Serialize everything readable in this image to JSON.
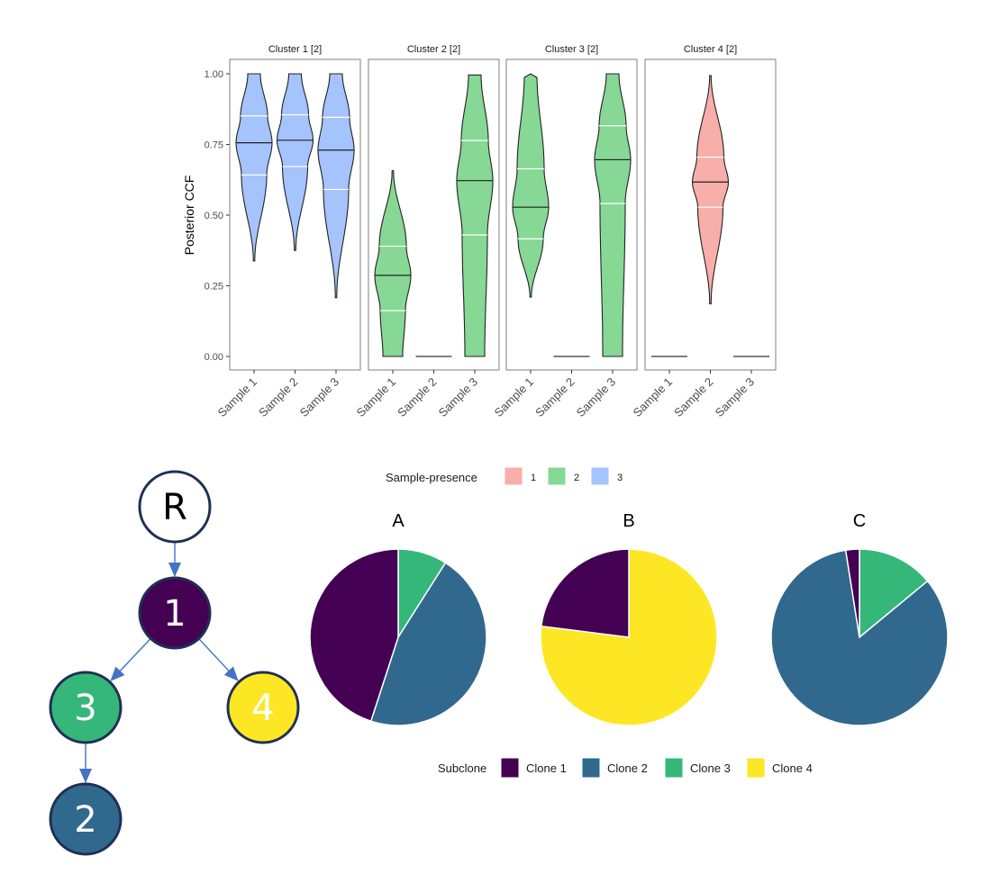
{
  "chart_data": [
    {
      "type": "violin",
      "ylabel": "Posterior CCF",
      "ylim": [
        0,
        1
      ],
      "yticks": [
        "0.00",
        "0.25",
        "0.50",
        "0.75",
        "1.00"
      ],
      "grid": false,
      "categories": [
        "Sample 1",
        "Sample 2",
        "Sample 3"
      ],
      "panels": [
        {
          "title": "Cluster 1 [2]",
          "presence": "3",
          "violins": [
            {
              "sample": "Sample 1",
              "min": 0.338,
              "q1": 0.642,
              "median": 0.756,
              "q3": 0.851,
              "max": 1.0
            },
            {
              "sample": "Sample 2",
              "min": 0.375,
              "q1": 0.672,
              "median": 0.765,
              "q3": 0.855,
              "max": 1.0
            },
            {
              "sample": "Sample 3",
              "min": 0.208,
              "q1": 0.591,
              "median": 0.73,
              "q3": 0.846,
              "max": 1.0
            }
          ]
        },
        {
          "title": "Cluster 2 [2]",
          "presence": "2",
          "violins": [
            {
              "sample": "Sample 1",
              "min": 0.0,
              "q1": 0.162,
              "median": 0.287,
              "q3": 0.39,
              "max": 0.657
            },
            {
              "sample": "Sample 2",
              "min": 0.0,
              "q1": 0.0,
              "median": 0.0,
              "q3": 0.0,
              "max": 0.0
            },
            {
              "sample": "Sample 3",
              "min": 0.0,
              "q1": 0.43,
              "median": 0.622,
              "q3": 0.764,
              "max": 0.996
            }
          ]
        },
        {
          "title": "Cluster 3 [2]",
          "presence": "2",
          "violins": [
            {
              "sample": "Sample 1",
              "min": 0.21,
              "q1": 0.416,
              "median": 0.528,
              "q3": 0.664,
              "max": 1.0
            },
            {
              "sample": "Sample 2",
              "min": 0.0,
              "q1": 0.0,
              "median": 0.0,
              "q3": 0.0,
              "max": 0.0
            },
            {
              "sample": "Sample 3",
              "min": 0.0,
              "q1": 0.541,
              "median": 0.696,
              "q3": 0.816,
              "max": 1.0
            }
          ]
        },
        {
          "title": "Cluster 4 [2]",
          "presence": "1",
          "violins": [
            {
              "sample": "Sample 1",
              "min": 0.0,
              "q1": 0.0,
              "median": 0.0,
              "q3": 0.0,
              "max": 0.0
            },
            {
              "sample": "Sample 2",
              "min": 0.186,
              "q1": 0.528,
              "median": 0.617,
              "q3": 0.705,
              "max": 0.994
            },
            {
              "sample": "Sample 3",
              "min": 0.0,
              "q1": 0.0,
              "median": 0.0,
              "q3": 0.0,
              "max": 0.0
            }
          ]
        }
      ],
      "legend": {
        "title": "Sample-presence",
        "placement": "bottom",
        "items": [
          {
            "label": "1",
            "color": "#f8aea9"
          },
          {
            "label": "2",
            "color": "#86d894"
          },
          {
            "label": "3",
            "color": "#a5c3fc"
          }
        ]
      }
    },
    {
      "type": "pie",
      "pies": [
        {
          "title": "A",
          "slices": [
            {
              "name": "Clone 3",
              "value": 9
            },
            {
              "name": "Clone 2",
              "value": 46
            },
            {
              "name": "Clone 1",
              "value": 45
            }
          ]
        },
        {
          "title": "B",
          "slices": [
            {
              "name": "Clone 4",
              "value": 77
            },
            {
              "name": "Clone 1",
              "value": 23
            }
          ]
        },
        {
          "title": "C",
          "slices": [
            {
              "name": "Clone 3",
              "value": 14
            },
            {
              "name": "Clone 2",
              "value": 83.5
            },
            {
              "name": "Clone 1",
              "value": 2.5
            }
          ]
        }
      ],
      "legend": {
        "title": "Subclone",
        "placement": "bottom",
        "items": [
          {
            "label": "Clone 1",
            "color": "#440154"
          },
          {
            "label": "Clone 2",
            "color": "#31688e"
          },
          {
            "label": "Clone 3",
            "color": "#35b779"
          },
          {
            "label": "Clone 4",
            "color": "#fde725"
          }
        ]
      }
    }
  ],
  "tree": {
    "edge_color": "#4472c4",
    "border_color": "#1f3055",
    "nodes": [
      {
        "id": "R",
        "label": "R",
        "fill": "#ffffff",
        "text": "#000000"
      },
      {
        "id": "1",
        "label": "1",
        "fill": "#440154",
        "text": "#ffffff"
      },
      {
        "id": "3",
        "label": "3",
        "fill": "#35b779",
        "text": "#ffffff"
      },
      {
        "id": "4",
        "label": "4",
        "fill": "#fde725",
        "text": "#ffffff"
      },
      {
        "id": "2",
        "label": "2",
        "fill": "#31688e",
        "text": "#ffffff"
      }
    ],
    "edges": [
      [
        "R",
        "1"
      ],
      [
        "1",
        "3"
      ],
      [
        "1",
        "4"
      ],
      [
        "3",
        "2"
      ]
    ]
  }
}
